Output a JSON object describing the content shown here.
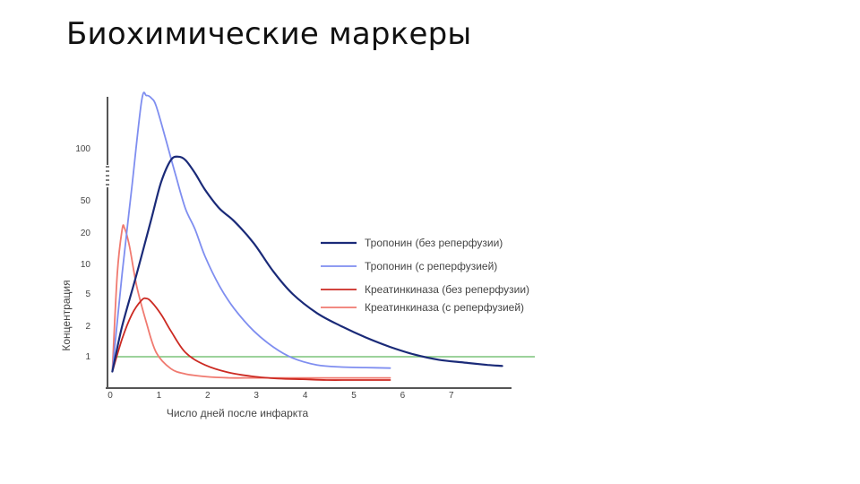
{
  "slide": {
    "title": "Биохимические маркеры"
  },
  "chart_data": {
    "type": "line",
    "title": "",
    "xlabel": "Число дней после инфаркта",
    "ylabel": "Концентрация",
    "y_scale": "log",
    "y_axis_break": true,
    "x_ticks": [
      0,
      1,
      2,
      3,
      4,
      5,
      6,
      7
    ],
    "y_ticks": [
      1,
      2,
      5,
      10,
      20,
      50,
      100
    ],
    "xlim": [
      0,
      8
    ],
    "grid": false,
    "legend_position": "right",
    "reference_line": {
      "y": 1,
      "color": "#7cc47a"
    },
    "series": [
      {
        "name": "Тропонин (без реперфузии)",
        "color": "#1a2a78",
        "x": [
          0.1,
          0.3,
          0.6,
          0.9,
          1.1,
          1.3,
          1.45,
          1.6,
          1.8,
          2.0,
          2.3,
          2.6,
          3.0,
          3.4,
          3.8,
          4.3,
          4.8,
          5.3,
          5.8,
          6.3,
          6.8,
          7.4,
          7.8,
          8.1
        ],
        "y": [
          0.7,
          2.0,
          8.0,
          30.0,
          64.0,
          86.0,
          90.0,
          86.0,
          72.0,
          58.0,
          40.0,
          28.0,
          16.0,
          8.5,
          5.0,
          2.9,
          2.0,
          1.55,
          1.25,
          1.05,
          0.93,
          0.86,
          0.82,
          0.8
        ]
      },
      {
        "name": "Тропонин (с реперфузией)",
        "color": "#7f8ef0",
        "x": [
          0.1,
          0.3,
          0.5,
          0.7,
          0.8,
          0.9,
          1.0,
          1.2,
          1.4,
          1.6,
          1.8,
          2.0,
          2.3,
          2.6,
          3.0,
          3.4,
          3.8,
          4.3,
          4.8,
          5.3,
          5.8
        ],
        "y": [
          0.7,
          8.0,
          60.0,
          170.0,
          180.0,
          175.0,
          160.0,
          110.0,
          70.0,
          40.0,
          22.0,
          12.0,
          6.0,
          3.3,
          1.8,
          1.25,
          0.97,
          0.82,
          0.78,
          0.77,
          0.76
        ]
      },
      {
        "name": "Креатинкиназа (без реперфузии)",
        "color": "#cc2a22",
        "x": [
          0.1,
          0.3,
          0.5,
          0.7,
          0.8,
          0.9,
          1.1,
          1.3,
          1.6,
          2.0,
          2.5,
          3.0,
          3.5,
          4.0,
          4.5,
          5.0,
          5.5,
          5.8
        ],
        "y": [
          0.7,
          1.5,
          2.8,
          4.2,
          4.4,
          4.0,
          2.8,
          1.8,
          1.1,
          0.82,
          0.68,
          0.62,
          0.59,
          0.58,
          0.57,
          0.57,
          0.57,
          0.57
        ]
      },
      {
        "name": "Креатинкиназа (с реперфузией)",
        "color": "#f07a70",
        "x": [
          0.1,
          0.2,
          0.3,
          0.35,
          0.45,
          0.6,
          0.8,
          1.0,
          1.3,
          1.6,
          2.0,
          2.5,
          3.0,
          3.5,
          4.0,
          4.5,
          5.0,
          5.5,
          5.8
        ],
        "y": [
          0.7,
          8.0,
          22.0,
          23.0,
          15.0,
          6.0,
          2.2,
          1.1,
          0.75,
          0.66,
          0.62,
          0.6,
          0.6,
          0.6,
          0.6,
          0.6,
          0.6,
          0.6,
          0.6
        ]
      }
    ]
  }
}
